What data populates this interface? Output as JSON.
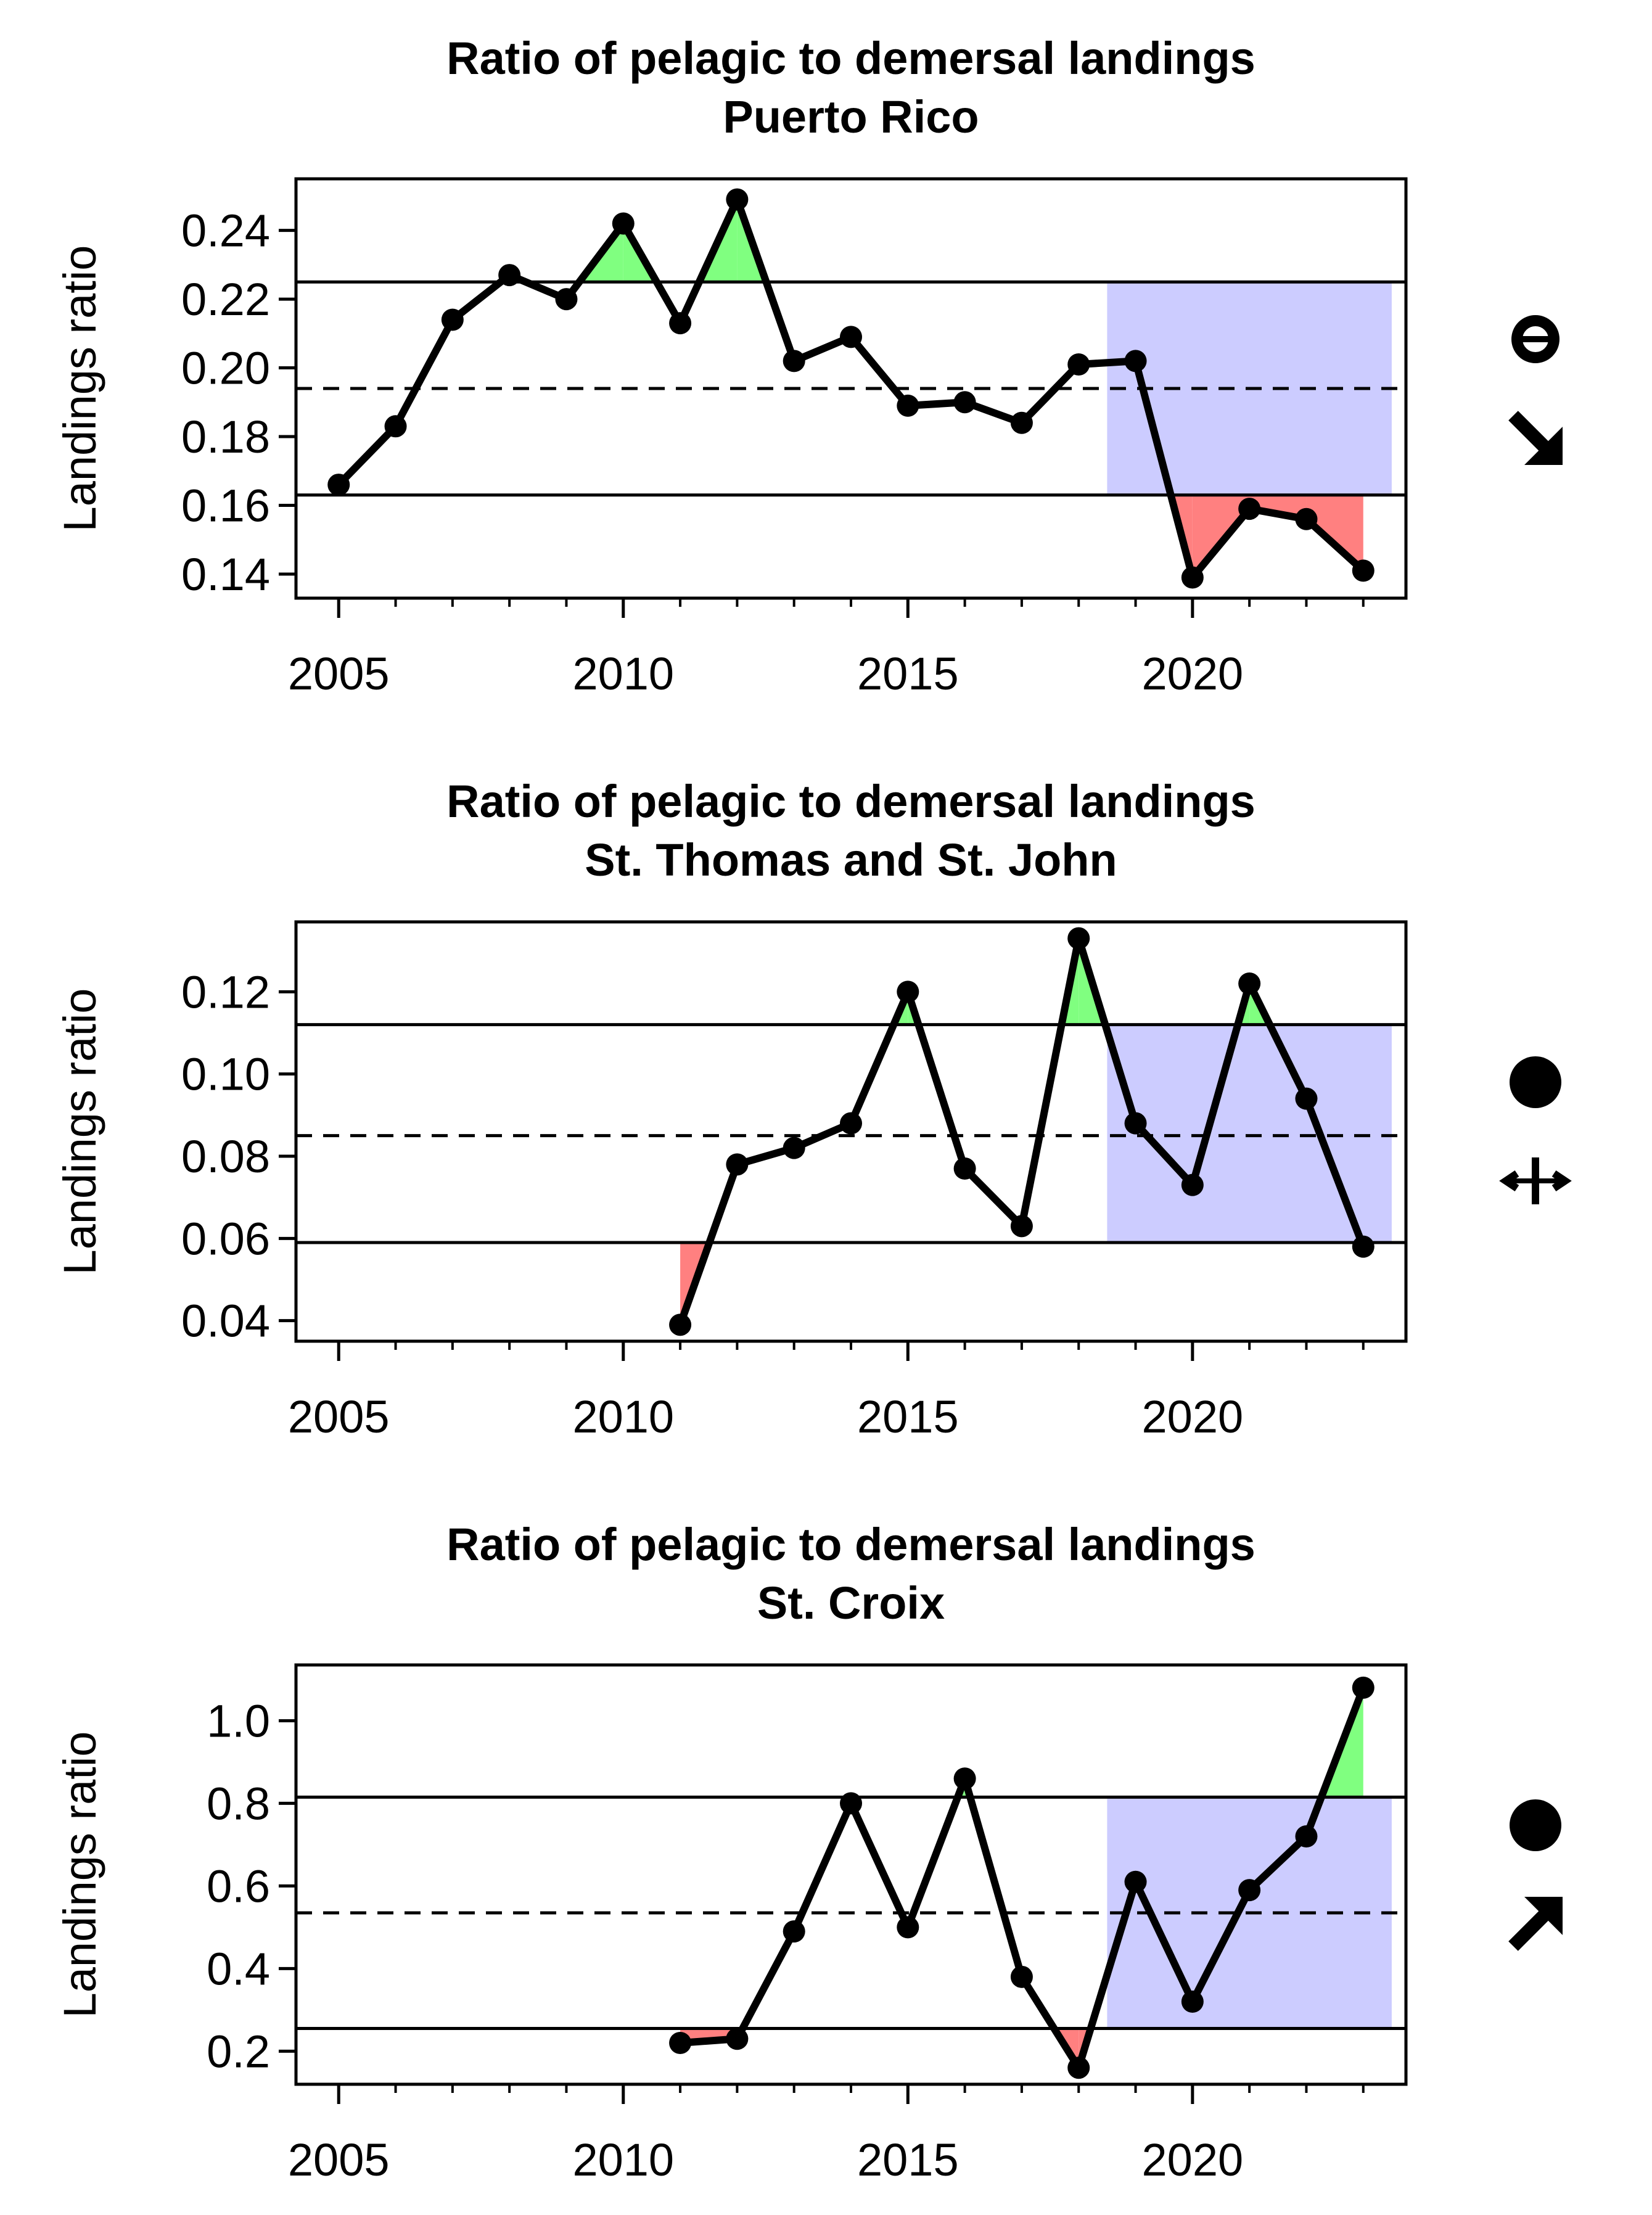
{
  "chart_data": [
    {
      "type": "line",
      "title": "Ratio of pelagic to demersal landings",
      "subtitle": "Puerto Rico",
      "xlabel": "",
      "ylabel": "Landings ratio",
      "x_ticks": [
        2005,
        2010,
        2015,
        2020
      ],
      "x_tick_labels": [
        "2005",
        "2010",
        "2015",
        "2020"
      ],
      "y_ticks": [
        0.14,
        0.16,
        0.18,
        0.2,
        0.22,
        0.24
      ],
      "y_tick_labels": [
        "0.14",
        "0.16",
        "0.18",
        "0.20",
        "0.22",
        "0.24"
      ],
      "xlim": [
        2004.25,
        2023.75
      ],
      "ylim": [
        0.133,
        0.255
      ],
      "x": [
        2005,
        2006,
        2007,
        2008,
        2009,
        2010,
        2011,
        2012,
        2013,
        2014,
        2015,
        2016,
        2017,
        2018,
        2019,
        2020,
        2021,
        2022,
        2023
      ],
      "values": [
        0.166,
        0.183,
        0.214,
        0.227,
        0.22,
        0.242,
        0.213,
        0.249,
        0.202,
        0.209,
        0.189,
        0.19,
        0.184,
        0.201,
        0.202,
        0.139,
        0.159,
        0.156,
        0.141
      ],
      "mean": 0.194,
      "upper": 0.225,
      "lower": 0.163,
      "recent_window": [
        2018.5,
        2023.5
      ],
      "colors": {
        "above": "#80ff80",
        "below": "#ff8080",
        "window": "#ccccff",
        "line": "#000000"
      },
      "indicators": {
        "mean": "open-circle-icon",
        "trend": "arrow-down-right-icon"
      }
    },
    {
      "type": "line",
      "title": "Ratio of pelagic to demersal landings",
      "subtitle": "St. Thomas and St. John",
      "xlabel": "",
      "ylabel": "Landings ratio",
      "x_ticks": [
        2005,
        2010,
        2015,
        2020
      ],
      "x_tick_labels": [
        "2005",
        "2010",
        "2015",
        "2020"
      ],
      "y_ticks": [
        0.04,
        0.06,
        0.08,
        0.1,
        0.12
      ],
      "y_tick_labels": [
        "0.04",
        "0.06",
        "0.08",
        "0.10",
        "0.12"
      ],
      "xlim": [
        2004.25,
        2023.75
      ],
      "ylim": [
        0.035,
        0.137
      ],
      "x": [
        2011,
        2012,
        2013,
        2014,
        2015,
        2016,
        2017,
        2018,
        2019,
        2020,
        2021,
        2022,
        2023
      ],
      "values": [
        0.039,
        0.078,
        0.082,
        0.088,
        0.12,
        0.077,
        0.063,
        0.133,
        0.088,
        0.073,
        0.122,
        0.094,
        0.058
      ],
      "mean": 0.085,
      "upper": 0.112,
      "lower": 0.059,
      "recent_window": [
        2018.5,
        2023.5
      ],
      "colors": {
        "above": "#80ff80",
        "below": "#ff8080",
        "window": "#ccccff",
        "line": "#000000"
      },
      "indicators": {
        "mean": "filled-circle-icon",
        "trend": "arrow-left-right-icon"
      }
    },
    {
      "type": "line",
      "title": "Ratio of pelagic to demersal landings",
      "subtitle": "St. Croix",
      "xlabel": "",
      "ylabel": "Landings ratio",
      "x_ticks": [
        2005,
        2010,
        2015,
        2020
      ],
      "x_tick_labels": [
        "2005",
        "2010",
        "2015",
        "2020"
      ],
      "y_ticks": [
        0.2,
        0.4,
        0.6,
        0.8,
        1.0
      ],
      "y_tick_labels": [
        "0.2",
        "0.4",
        "0.6",
        "0.8",
        "1.0"
      ],
      "xlim": [
        2004.25,
        2023.75
      ],
      "ylim": [
        0.12,
        1.135
      ],
      "x": [
        2011,
        2012,
        2013,
        2014,
        2015,
        2016,
        2017,
        2018,
        2019,
        2020,
        2021,
        2022,
        2023
      ],
      "values": [
        0.22,
        0.23,
        0.49,
        0.8,
        0.5,
        0.86,
        0.38,
        0.16,
        0.61,
        0.32,
        0.59,
        0.72,
        1.08
      ],
      "mean": 0.535,
      "upper": 0.815,
      "lower": 0.255,
      "recent_window": [
        2018.5,
        2023.5
      ],
      "colors": {
        "above": "#80ff80",
        "below": "#ff8080",
        "window": "#ccccff",
        "line": "#000000"
      },
      "indicators": {
        "mean": "filled-circle-icon",
        "trend": "arrow-up-right-icon"
      }
    }
  ]
}
